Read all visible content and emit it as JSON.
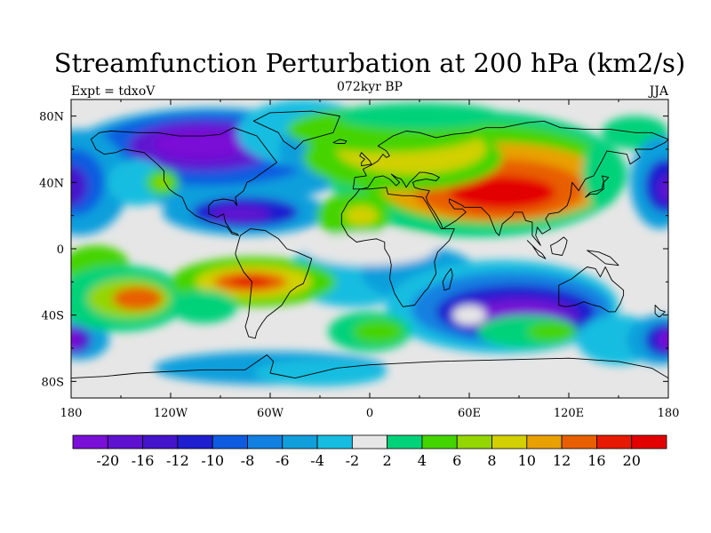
{
  "title": "Streamfunction Perturbation at 200 hPa (km2/s)",
  "left_label": "Expt = tdxoV",
  "center_label": "072kyr BP",
  "right_label": "JJA",
  "colors": {
    "background": "#e6e6e6",
    "coast": "#000000"
  },
  "chart_data": {
    "type": "filled-contour map",
    "variable": "streamfunction perturbation",
    "level_hpa": 200,
    "units": "km2/s",
    "lat_ticks": [
      "80N",
      "40N",
      "0",
      "40S",
      "80S"
    ],
    "lon_ticks": [
      "180",
      "120W",
      "60W",
      "0",
      "60E",
      "120E",
      "180"
    ],
    "colorbar": {
      "labels": [
        "-20",
        "-16",
        "-12",
        "-10",
        "-8",
        "-6",
        "-4",
        "-2",
        "2",
        "4",
        "6",
        "8",
        "10",
        "12",
        "16",
        "20"
      ],
      "colors": [
        "#7a0fd6",
        "#5e12d0",
        "#4414cc",
        "#1f1fcf",
        "#0f5be0",
        "#1280e0",
        "#119fdc",
        "#17bde0",
        "#e6e6e6",
        "#00d27a",
        "#44d400",
        "#94d600",
        "#d2d000",
        "#e8a100",
        "#e85f00",
        "#e61a00",
        "#e30000"
      ]
    }
  }
}
